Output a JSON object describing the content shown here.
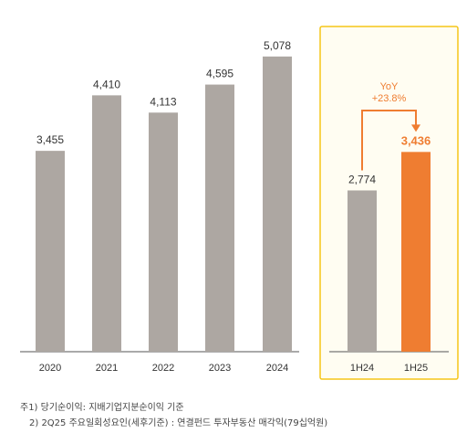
{
  "chart_data": [
    {
      "type": "bar",
      "categories": [
        "2020",
        "2021",
        "2022",
        "2023",
        "2024"
      ],
      "values": [
        3455,
        4410,
        4113,
        4595,
        5078
      ],
      "value_labels": [
        "3,455",
        "4,410",
        "4,113",
        "4,595",
        "5,078"
      ],
      "ylim": [
        0,
        5500
      ],
      "grid": false,
      "bar_color": "#ada7a2"
    },
    {
      "type": "bar",
      "categories": [
        "1H24",
        "1H25"
      ],
      "values": [
        2774,
        3436
      ],
      "value_labels": [
        "2,774",
        "3,436"
      ],
      "ylim": [
        0,
        5500
      ],
      "grid": false,
      "bar_colors": [
        "#ada7a2",
        "#ef7d31"
      ],
      "annotation": {
        "line1": "YoY",
        "line2": "+23.8%"
      },
      "highlight_box_color": "#f5c518",
      "accent_color": "#ef7d31"
    }
  ],
  "footnotes": {
    "note1": "주1) 당기순이익: 지배기업지분순이익 기준",
    "note2": "2) 2Q25 주요일회성요인(세후기준) : 연결펀드 투자부동산 매각익(79십억원)"
  }
}
